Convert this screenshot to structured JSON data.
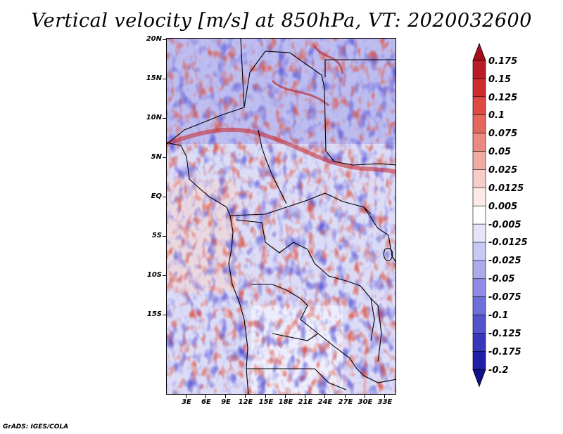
{
  "title": "Vertical velocity [m/s] at 850hPa, VT: 2020032600",
  "footer": "GrADS: IGES/COLA",
  "y_axis_labels": [
    "20N",
    "15N",
    "10N",
    "5N",
    "EQ",
    "5S",
    "10S",
    "15S"
  ],
  "x_axis_labels": [
    "3E",
    "6E",
    "9E",
    "12E",
    "15E",
    "18E",
    "21E",
    "24E",
    "27E",
    "30E",
    "33E"
  ],
  "colorbar": {
    "labels": [
      "0.175",
      "0.15",
      "0.125",
      "0.1",
      "0.075",
      "0.05",
      "0.025",
      "0.0125",
      "0.005",
      "-0.005",
      "-0.0125",
      "-0.025",
      "-0.05",
      "-0.075",
      "-0.1",
      "-0.125",
      "-0.175",
      "-0.2"
    ],
    "colors": [
      "#a40f1b",
      "#b91c24",
      "#cc2c2c",
      "#dc4a42",
      "#e4675d",
      "#ea8a80",
      "#f2aba2",
      "#f8cdc8",
      "#fde9e6",
      "#ffffff",
      "#e4e4fb",
      "#c9c8f4",
      "#ababec",
      "#8e8ce4",
      "#706ed8",
      "#5552cc",
      "#3a36bd",
      "#221ea8",
      "#130f8c"
    ]
  }
}
